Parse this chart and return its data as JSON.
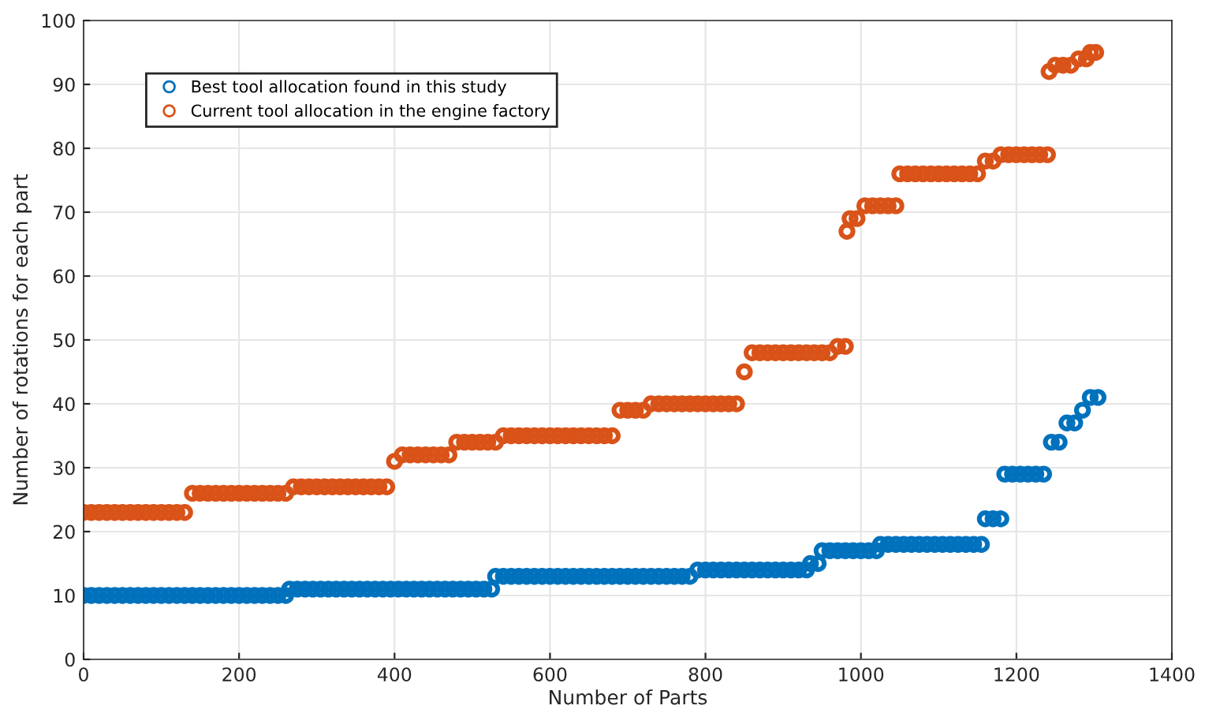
{
  "chart_data": {
    "type": "scatter",
    "xlabel": "Number of Parts",
    "ylabel": "Number of rotations for each part",
    "xlim": [
      0,
      1400
    ],
    "xticks": [
      0,
      200,
      400,
      600,
      800,
      1000,
      1200,
      1400
    ],
    "ylim": [
      0,
      100
    ],
    "yticks": [
      0,
      10,
      20,
      30,
      40,
      50,
      60,
      70,
      80,
      90,
      100
    ],
    "grid": true,
    "legend": "top left",
    "marker": "circle",
    "series": [
      {
        "name": "Best tool allocation found in this study",
        "color": "#0072bd",
        "x": [
          0,
          10,
          20,
          30,
          40,
          50,
          60,
          70,
          80,
          90,
          100,
          110,
          120,
          130,
          140,
          150,
          160,
          170,
          180,
          190,
          200,
          210,
          220,
          230,
          240,
          250,
          260,
          265,
          275,
          285,
          295,
          305,
          315,
          325,
          335,
          345,
          355,
          365,
          375,
          385,
          395,
          405,
          415,
          425,
          435,
          445,
          455,
          465,
          475,
          485,
          495,
          505,
          515,
          525,
          530,
          540,
          550,
          560,
          570,
          580,
          590,
          600,
          610,
          620,
          630,
          640,
          650,
          660,
          670,
          680,
          690,
          700,
          710,
          720,
          730,
          740,
          750,
          760,
          770,
          780,
          790,
          800,
          810,
          820,
          830,
          840,
          850,
          860,
          870,
          880,
          890,
          900,
          910,
          920,
          930,
          935,
          945,
          950,
          960,
          970,
          980,
          990,
          1000,
          1010,
          1020,
          1025,
          1035,
          1045,
          1055,
          1065,
          1075,
          1085,
          1095,
          1105,
          1115,
          1125,
          1135,
          1145,
          1155,
          1160,
          1170,
          1180,
          1185,
          1195,
          1205,
          1215,
          1225,
          1235,
          1245,
          1255,
          1265,
          1275,
          1285,
          1295,
          1305
        ],
        "values": [
          10,
          10,
          10,
          10,
          10,
          10,
          10,
          10,
          10,
          10,
          10,
          10,
          10,
          10,
          10,
          10,
          10,
          10,
          10,
          10,
          10,
          10,
          10,
          10,
          10,
          10,
          10,
          11,
          11,
          11,
          11,
          11,
          11,
          11,
          11,
          11,
          11,
          11,
          11,
          11,
          11,
          11,
          11,
          11,
          11,
          11,
          11,
          11,
          11,
          11,
          11,
          11,
          11,
          11,
          13,
          13,
          13,
          13,
          13,
          13,
          13,
          13,
          13,
          13,
          13,
          13,
          13,
          13,
          13,
          13,
          13,
          13,
          13,
          13,
          13,
          13,
          13,
          13,
          13,
          13,
          14,
          14,
          14,
          14,
          14,
          14,
          14,
          14,
          14,
          14,
          14,
          14,
          14,
          14,
          14,
          15,
          15,
          17,
          17,
          17,
          17,
          17,
          17,
          17,
          17,
          18,
          18,
          18,
          18,
          18,
          18,
          18,
          18,
          18,
          18,
          18,
          18,
          18,
          18,
          22,
          22,
          22,
          29,
          29,
          29,
          29,
          29,
          29,
          34,
          34,
          37,
          37,
          39,
          41,
          41
        ]
      },
      {
        "name": "Current tool allocation in the engine factory",
        "color": "#d95319",
        "x": [
          0,
          10,
          20,
          30,
          40,
          50,
          60,
          70,
          80,
          90,
          100,
          110,
          120,
          130,
          140,
          150,
          160,
          170,
          180,
          190,
          200,
          210,
          220,
          230,
          240,
          250,
          260,
          270,
          280,
          290,
          300,
          310,
          320,
          330,
          340,
          350,
          360,
          370,
          380,
          390,
          400,
          410,
          420,
          430,
          440,
          450,
          460,
          470,
          480,
          490,
          500,
          510,
          520,
          530,
          540,
          550,
          560,
          570,
          580,
          590,
          600,
          610,
          620,
          630,
          640,
          650,
          660,
          670,
          680,
          690,
          700,
          710,
          720,
          730,
          740,
          750,
          760,
          770,
          780,
          790,
          800,
          810,
          820,
          830,
          840,
          850,
          860,
          870,
          880,
          890,
          900,
          910,
          920,
          930,
          940,
          950,
          960,
          970,
          980,
          982,
          986,
          995,
          1005,
          1015,
          1025,
          1035,
          1045,
          1050,
          1060,
          1070,
          1080,
          1090,
          1100,
          1110,
          1120,
          1130,
          1140,
          1150,
          1160,
          1170,
          1180,
          1190,
          1200,
          1210,
          1220,
          1230,
          1240,
          1242,
          1250,
          1260,
          1270,
          1280,
          1290,
          1295,
          1302
        ],
        "values": [
          23,
          23,
          23,
          23,
          23,
          23,
          23,
          23,
          23,
          23,
          23,
          23,
          23,
          23,
          26,
          26,
          26,
          26,
          26,
          26,
          26,
          26,
          26,
          26,
          26,
          26,
          26,
          27,
          27,
          27,
          27,
          27,
          27,
          27,
          27,
          27,
          27,
          27,
          27,
          27,
          31,
          32,
          32,
          32,
          32,
          32,
          32,
          32,
          34,
          34,
          34,
          34,
          34,
          34,
          35,
          35,
          35,
          35,
          35,
          35,
          35,
          35,
          35,
          35,
          35,
          35,
          35,
          35,
          35,
          39,
          39,
          39,
          39,
          40,
          40,
          40,
          40,
          40,
          40,
          40,
          40,
          40,
          40,
          40,
          40,
          45,
          48,
          48,
          48,
          48,
          48,
          48,
          48,
          48,
          48,
          48,
          48,
          49,
          49,
          67,
          69,
          69,
          71,
          71,
          71,
          71,
          71,
          76,
          76,
          76,
          76,
          76,
          76,
          76,
          76,
          76,
          76,
          76,
          78,
          78,
          79,
          79,
          79,
          79,
          79,
          79,
          79,
          92,
          93,
          93,
          93,
          94,
          94,
          95,
          95
        ]
      }
    ]
  }
}
